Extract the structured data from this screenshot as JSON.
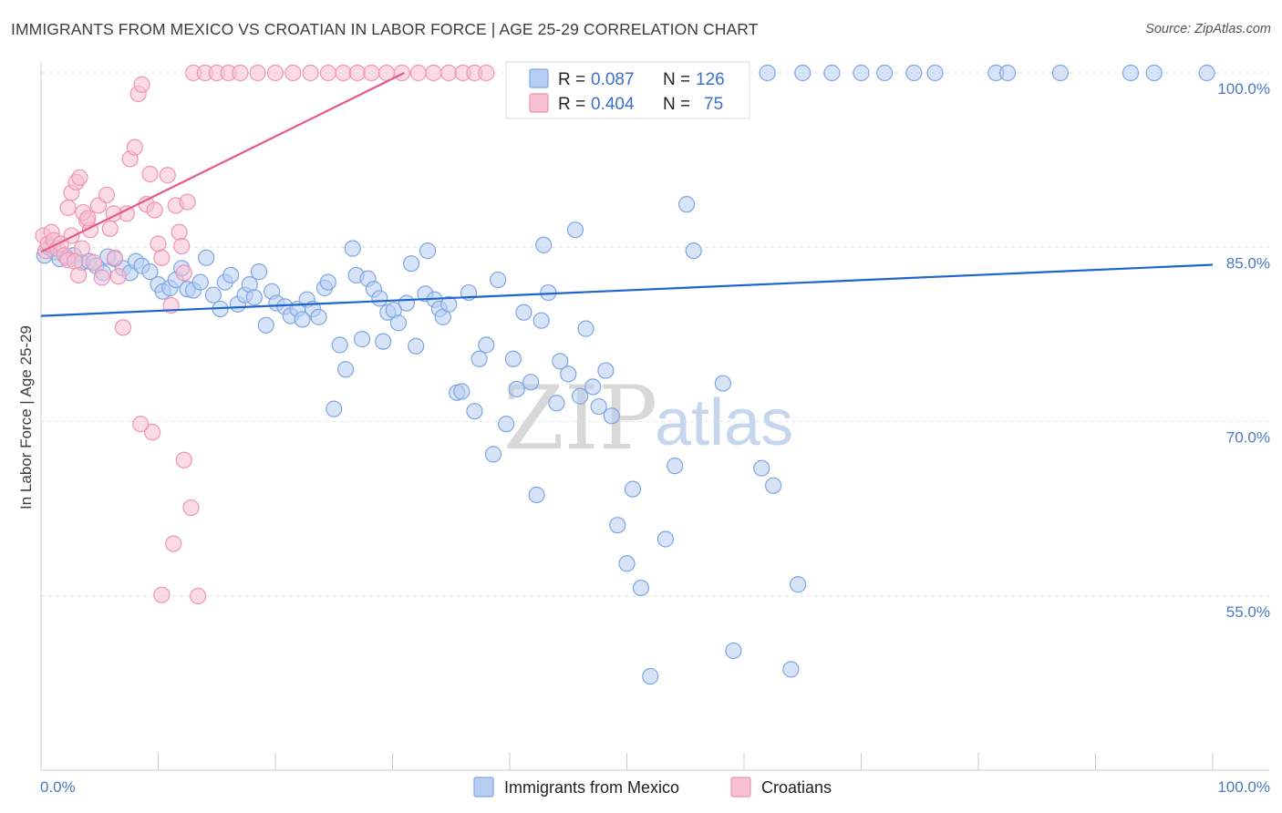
{
  "title": "IMMIGRANTS FROM MEXICO VS CROATIAN IN LABOR FORCE | AGE 25-29 CORRELATION CHART",
  "source": "Source: ZipAtlas.com",
  "watermark": {
    "zip": "ZIP",
    "atlas": "atlas"
  },
  "legend": {
    "r_label": "R =",
    "n_label": "N =",
    "entries": [
      {
        "r": "0.087",
        "n": "126"
      },
      {
        "r": "0.404",
        "n": "75"
      }
    ]
  },
  "colors": {
    "blue_fill": "#b7cdf2",
    "blue_stroke": "#7ea6e4",
    "blue_line": "#1f66cc",
    "pink_fill": "#f7c0d2",
    "pink_stroke": "#ef94b2",
    "pink_line": "#e45b8b",
    "grid": "#dde3ea",
    "tick_text": "#4a78c8"
  },
  "chart_data": {
    "type": "scatter",
    "title": "IMMIGRANTS FROM MEXICO VS CROATIAN IN LABOR FORCE | AGE 25-29 CORRELATION CHART",
    "xlabel": "",
    "ylabel": "In Labor Force | Age 25-29",
    "xlim": [
      0,
      100
    ],
    "ylim": [
      40,
      101.5
    ],
    "x_tick_labels": [
      "0.0%",
      "100.0%"
    ],
    "y_ticks": [
      55,
      70,
      85,
      100
    ],
    "y_tick_labels": [
      "55.0%",
      "70.0%",
      "85.0%",
      "100.0%"
    ],
    "grid": true,
    "legend_position": "top-center",
    "series": [
      {
        "name": "Immigrants from Mexico",
        "color": "#7ea6e4",
        "r": 0.087,
        "n": 126,
        "trendline": {
          "x": [
            0,
            100
          ],
          "y": [
            79.1,
            83.5
          ]
        },
        "points": [
          [
            0.3,
            84.3
          ],
          [
            0.7,
            85.0
          ],
          [
            1.2,
            84.6
          ],
          [
            1.6,
            84.0
          ],
          [
            2.2,
            84.1
          ],
          [
            2.8,
            84.3
          ],
          [
            3.5,
            83.7
          ],
          [
            4.1,
            83.8
          ],
          [
            4.7,
            83.4
          ],
          [
            5.3,
            82.8
          ],
          [
            5.7,
            84.2
          ],
          [
            6.3,
            84.0
          ],
          [
            7.0,
            83.2
          ],
          [
            7.6,
            82.8
          ],
          [
            8.1,
            83.8
          ],
          [
            8.6,
            83.4
          ],
          [
            9.3,
            82.9
          ],
          [
            10.0,
            81.8
          ],
          [
            10.4,
            81.2
          ],
          [
            11.0,
            81.5
          ],
          [
            11.5,
            82.2
          ],
          [
            12.0,
            83.2
          ],
          [
            12.5,
            81.4
          ],
          [
            13.0,
            81.3
          ],
          [
            13.6,
            82.0
          ],
          [
            14.1,
            84.1
          ],
          [
            14.7,
            80.9
          ],
          [
            15.3,
            79.7
          ],
          [
            15.7,
            82.0
          ],
          [
            16.2,
            82.6
          ],
          [
            16.8,
            80.1
          ],
          [
            17.4,
            80.9
          ],
          [
            17.8,
            81.8
          ],
          [
            18.2,
            80.7
          ],
          [
            18.6,
            82.9
          ],
          [
            19.2,
            78.3
          ],
          [
            19.7,
            81.2
          ],
          [
            20.1,
            80.2
          ],
          [
            20.8,
            79.9
          ],
          [
            21.3,
            79.1
          ],
          [
            21.9,
            79.7
          ],
          [
            22.3,
            78.8
          ],
          [
            22.7,
            80.5
          ],
          [
            23.2,
            79.7
          ],
          [
            23.7,
            79.0
          ],
          [
            24.2,
            81.5
          ],
          [
            24.5,
            82.0
          ],
          [
            25.0,
            71.1
          ],
          [
            25.5,
            76.6
          ],
          [
            26.0,
            74.5
          ],
          [
            26.6,
            84.9
          ],
          [
            26.9,
            82.6
          ],
          [
            27.4,
            77.1
          ],
          [
            27.9,
            82.3
          ],
          [
            28.4,
            81.4
          ],
          [
            28.9,
            80.6
          ],
          [
            29.2,
            76.9
          ],
          [
            29.6,
            79.4
          ],
          [
            30.1,
            79.6
          ],
          [
            30.5,
            78.5
          ],
          [
            31.2,
            80.2
          ],
          [
            31.6,
            83.6
          ],
          [
            32.0,
            76.5
          ],
          [
            32.8,
            81.0
          ],
          [
            33.0,
            84.7
          ],
          [
            33.6,
            80.5
          ],
          [
            34.0,
            79.7
          ],
          [
            34.3,
            79.0
          ],
          [
            34.8,
            80.1
          ],
          [
            35.5,
            72.5
          ],
          [
            35.9,
            72.6
          ],
          [
            36.5,
            81.1
          ],
          [
            37.0,
            70.9
          ],
          [
            37.4,
            75.4
          ],
          [
            38.0,
            76.6
          ],
          [
            38.6,
            67.2
          ],
          [
            39.0,
            82.2
          ],
          [
            39.7,
            69.8
          ],
          [
            40.3,
            75.4
          ],
          [
            40.6,
            72.8
          ],
          [
            41.2,
            79.4
          ],
          [
            41.8,
            73.4
          ],
          [
            42.3,
            63.7
          ],
          [
            42.7,
            78.7
          ],
          [
            42.9,
            85.2
          ],
          [
            43.3,
            81.1
          ],
          [
            44.0,
            71.6
          ],
          [
            44.3,
            75.2
          ],
          [
            45.0,
            74.1
          ],
          [
            45.6,
            86.5
          ],
          [
            46.0,
            72.2
          ],
          [
            46.5,
            78.0
          ],
          [
            47.1,
            73.0
          ],
          [
            47.6,
            71.3
          ],
          [
            48.2,
            74.4
          ],
          [
            48.7,
            70.5
          ],
          [
            49.2,
            61.1
          ],
          [
            50.0,
            57.8
          ],
          [
            50.5,
            64.2
          ],
          [
            51.2,
            55.7
          ],
          [
            52.0,
            48.1
          ],
          [
            53.3,
            59.9
          ],
          [
            54.1,
            66.2
          ],
          [
            55.1,
            88.7
          ],
          [
            55.7,
            84.7
          ],
          [
            58.2,
            73.3
          ],
          [
            59.1,
            50.3
          ],
          [
            61.5,
            66.0
          ],
          [
            62.5,
            64.5
          ],
          [
            64.0,
            48.7
          ],
          [
            64.6,
            56.0
          ],
          [
            70.0,
            100.0
          ],
          [
            72.0,
            100.0
          ],
          [
            74.5,
            100.0
          ],
          [
            76.3,
            100.0
          ],
          [
            81.5,
            100.0
          ],
          [
            82.5,
            100.0
          ],
          [
            87.0,
            100.0
          ],
          [
            93.0,
            100.0
          ],
          [
            95.0,
            100.0
          ],
          [
            99.5,
            100.0
          ],
          [
            59.5,
            100.0
          ],
          [
            62.0,
            100.0
          ],
          [
            65.0,
            100.0
          ],
          [
            67.5,
            100.0
          ],
          [
            55.0,
            100.0
          ],
          [
            53.5,
            100.0
          ]
        ]
      },
      {
        "name": "Croatians",
        "color": "#ef94b2",
        "r": 0.404,
        "n": 75,
        "trendline": {
          "x": [
            0,
            31
          ],
          "y": [
            84.6,
            100.0
          ]
        },
        "points": [
          [
            0.2,
            86.0
          ],
          [
            0.4,
            84.7
          ],
          [
            0.6,
            85.3
          ],
          [
            0.9,
            86.3
          ],
          [
            1.1,
            85.6
          ],
          [
            1.4,
            84.9
          ],
          [
            1.7,
            85.3
          ],
          [
            2.0,
            84.3
          ],
          [
            2.3,
            83.9
          ],
          [
            2.6,
            86.0
          ],
          [
            2.9,
            83.8
          ],
          [
            3.2,
            82.6
          ],
          [
            3.5,
            84.9
          ],
          [
            3.9,
            87.3
          ],
          [
            4.2,
            86.5
          ],
          [
            4.5,
            83.7
          ],
          [
            4.9,
            88.6
          ],
          [
            5.2,
            82.4
          ],
          [
            5.6,
            89.5
          ],
          [
            5.9,
            86.6
          ],
          [
            6.3,
            84.1
          ],
          [
            6.6,
            82.5
          ],
          [
            7.0,
            78.1
          ],
          [
            7.3,
            87.9
          ],
          [
            7.6,
            92.6
          ],
          [
            8.0,
            93.6
          ],
          [
            8.3,
            98.2
          ],
          [
            8.6,
            99.0
          ],
          [
            9.0,
            88.7
          ],
          [
            9.3,
            91.3
          ],
          [
            9.7,
            88.2
          ],
          [
            10.0,
            85.3
          ],
          [
            10.3,
            84.1
          ],
          [
            10.8,
            91.2
          ],
          [
            11.1,
            80.0
          ],
          [
            11.5,
            88.6
          ],
          [
            11.8,
            86.3
          ],
          [
            12.2,
            82.8
          ],
          [
            2.3,
            88.4
          ],
          [
            2.6,
            89.7
          ],
          [
            3.0,
            90.6
          ],
          [
            3.3,
            91.0
          ],
          [
            3.6,
            88.0
          ],
          [
            4.0,
            87.5
          ],
          [
            6.2,
            87.9
          ],
          [
            12.5,
            88.9
          ],
          [
            13.0,
            100.0
          ],
          [
            14.0,
            100.0
          ],
          [
            15.0,
            100.0
          ],
          [
            16.0,
            100.0
          ],
          [
            17.0,
            100.0
          ],
          [
            18.5,
            100.0
          ],
          [
            20.0,
            100.0
          ],
          [
            21.5,
            100.0
          ],
          [
            23.0,
            100.0
          ],
          [
            24.5,
            100.0
          ],
          [
            25.8,
            100.0
          ],
          [
            27.0,
            100.0
          ],
          [
            28.2,
            100.0
          ],
          [
            29.5,
            100.0
          ],
          [
            30.8,
            100.0
          ],
          [
            32.2,
            100.0
          ],
          [
            33.5,
            100.0
          ],
          [
            34.8,
            100.0
          ],
          [
            36.0,
            100.0
          ],
          [
            37.0,
            100.0
          ],
          [
            38.0,
            100.0
          ],
          [
            9.5,
            69.1
          ],
          [
            10.3,
            55.1
          ],
          [
            11.3,
            59.5
          ],
          [
            12.2,
            66.7
          ],
          [
            12.8,
            62.6
          ],
          [
            13.4,
            55.0
          ],
          [
            8.5,
            69.8
          ],
          [
            12.0,
            85.1
          ]
        ]
      }
    ]
  }
}
